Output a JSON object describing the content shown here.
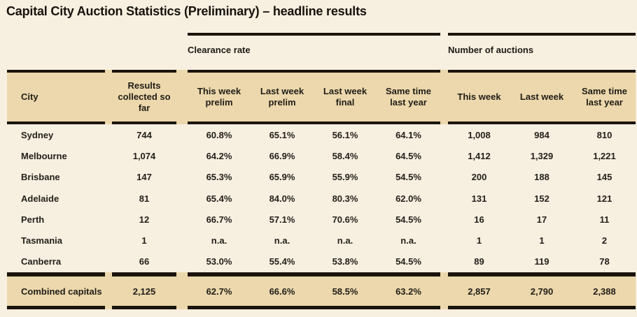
{
  "colors": {
    "background": "#f7efe0",
    "band": "#ecd8ac",
    "rule": "#1a140c",
    "text": "#24211b"
  },
  "chart_data": {
    "type": "table",
    "title": "Capital City Auction Statistics (Preliminary) – headline results",
    "column_groups": [
      {
        "label": "Clearance rate",
        "columns": [
          "This week prelim",
          "Last week prelim",
          "Last week final",
          "Same time last year"
        ]
      },
      {
        "label": "Number of auctions",
        "columns": [
          "This week",
          "Last week",
          "Same time last year"
        ]
      }
    ],
    "columns": [
      "City",
      "Results collected so far",
      "This week prelim",
      "Last week prelim",
      "Last week final",
      "Same time last year",
      "This week",
      "Last week",
      "Same time last year"
    ],
    "rows": [
      {
        "cells": [
          "Sydney",
          "744",
          "60.8%",
          "65.1%",
          "56.1%",
          "64.1%",
          "1,008",
          "984",
          "810"
        ]
      },
      {
        "cells": [
          "Melbourne",
          "1,074",
          "64.2%",
          "66.9%",
          "58.4%",
          "64.5%",
          "1,412",
          "1,329",
          "1,221"
        ]
      },
      {
        "cells": [
          "Brisbane",
          "147",
          "65.3%",
          "65.9%",
          "55.9%",
          "54.5%",
          "200",
          "188",
          "145"
        ]
      },
      {
        "cells": [
          "Adelaide",
          "81",
          "65.4%",
          "84.0%",
          "80.3%",
          "62.0%",
          "131",
          "152",
          "121"
        ]
      },
      {
        "cells": [
          "Perth",
          "12",
          "66.7%",
          "57.1%",
          "70.6%",
          "54.5%",
          "16",
          "17",
          "11"
        ]
      },
      {
        "cells": [
          "Tasmania",
          "1",
          "n.a.",
          "n.a.",
          "n.a.",
          "n.a.",
          "1",
          "1",
          "2"
        ]
      },
      {
        "cells": [
          "Canberra",
          "66",
          "53.0%",
          "55.4%",
          "53.8%",
          "54.5%",
          "89",
          "119",
          "78"
        ]
      }
    ],
    "footer": {
      "cells": [
        "Combined capitals",
        "2,125",
        "62.7%",
        "66.6%",
        "58.5%",
        "63.2%",
        "2,857",
        "2,790",
        "2,388"
      ]
    }
  }
}
